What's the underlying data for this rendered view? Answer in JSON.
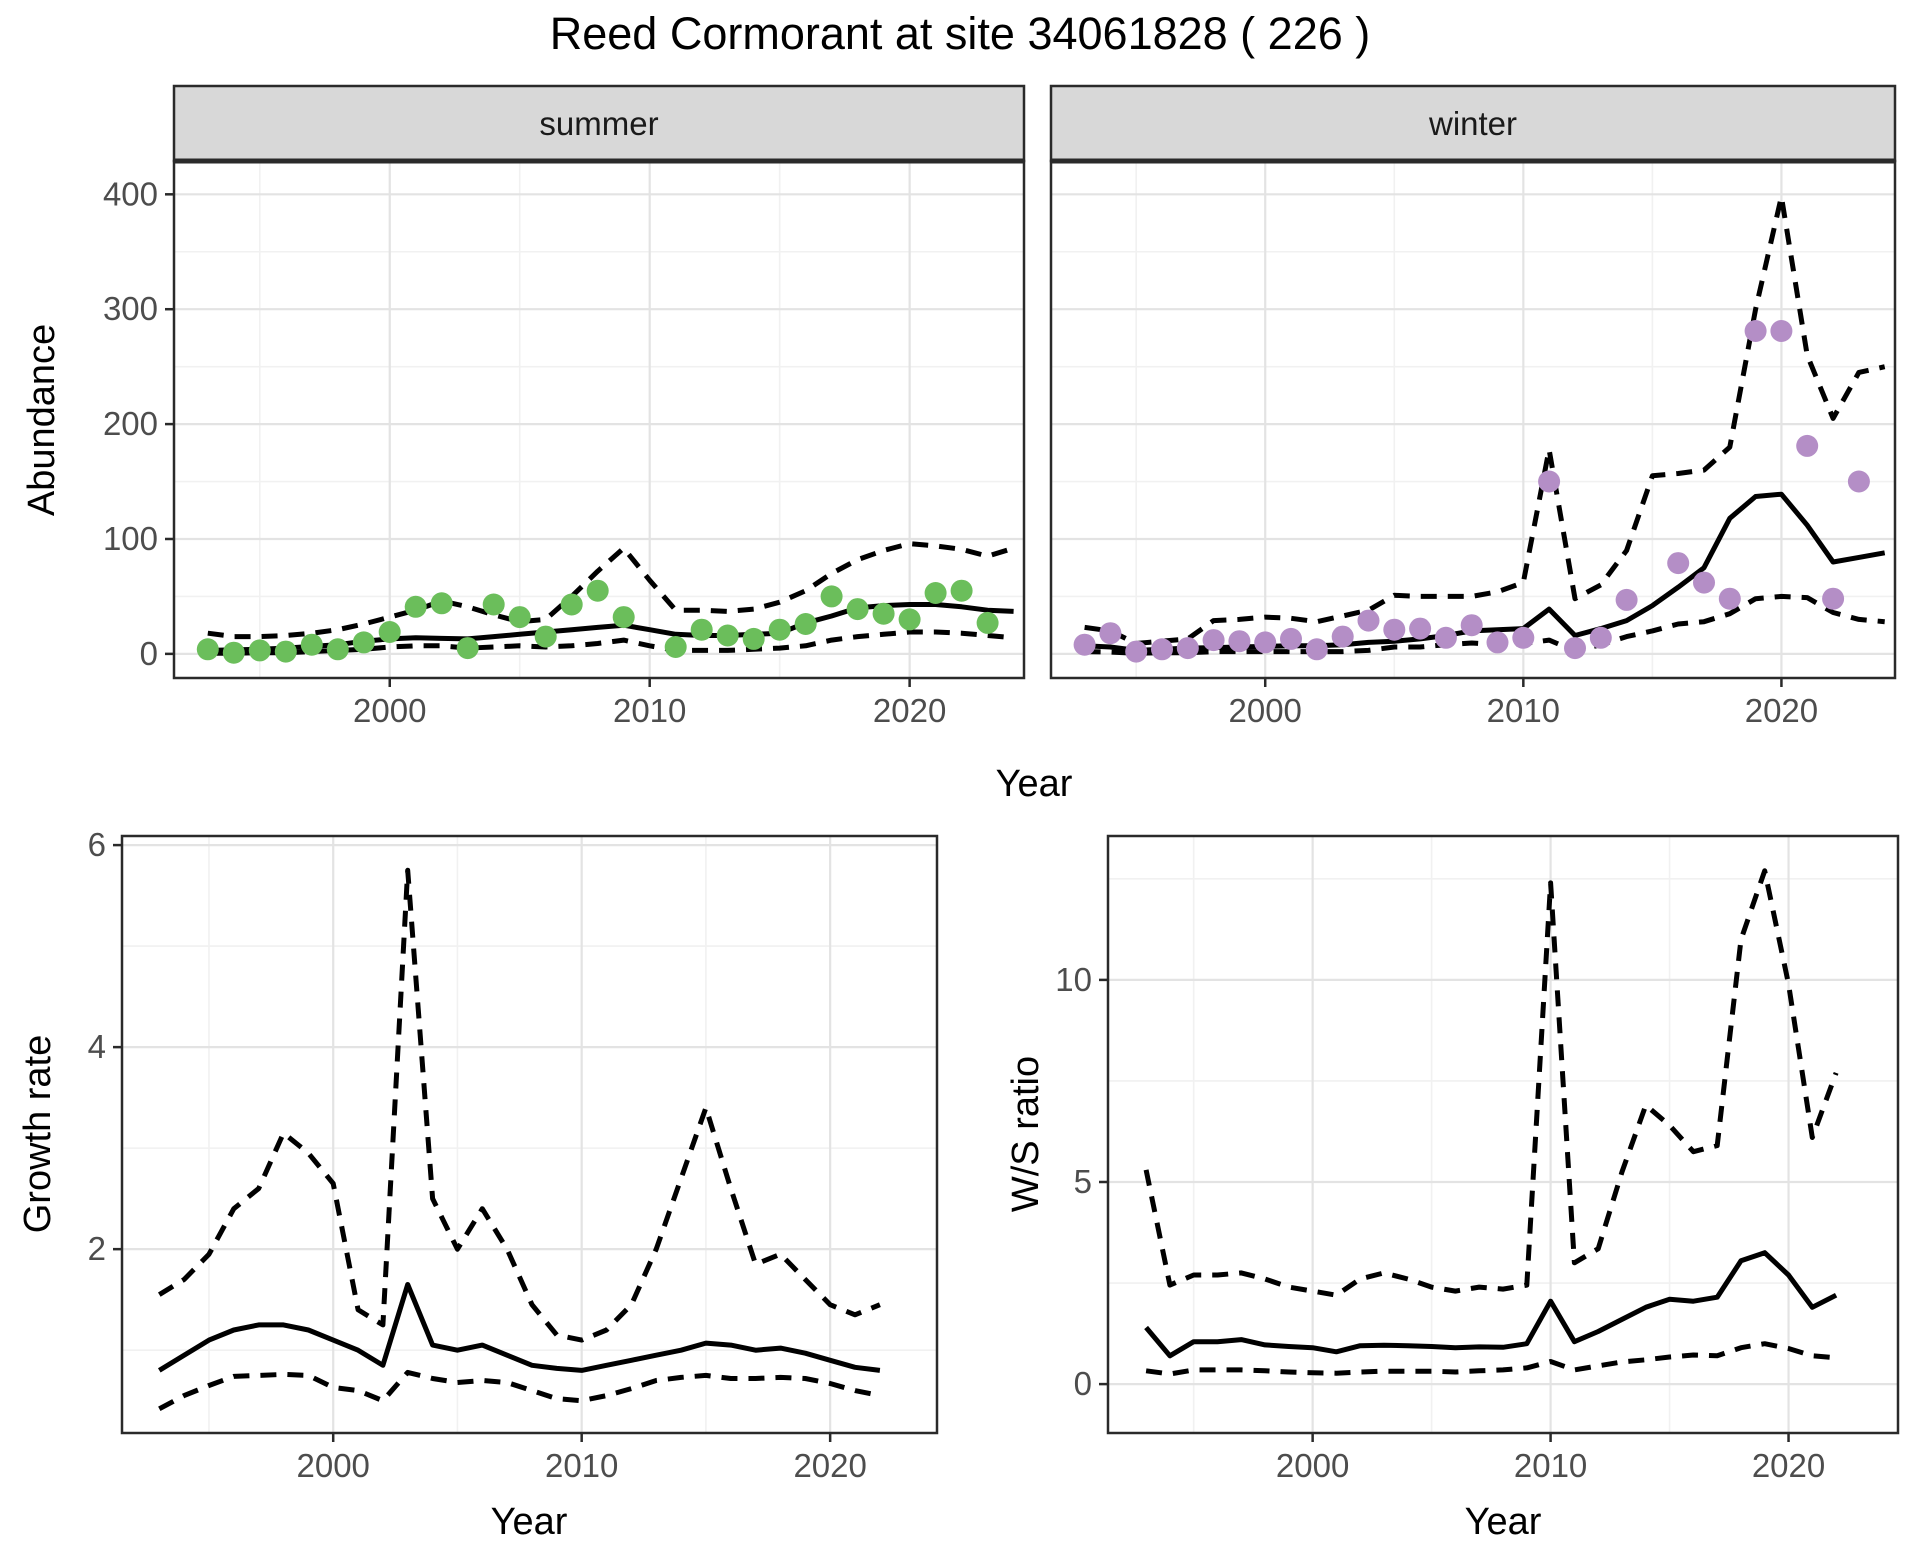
{
  "title": "Reed Cormorant at site 34061828 ( 226 )",
  "colors": {
    "summer_point": "#6BBE5B",
    "winter_point": "#B48EC6",
    "line": "#000000",
    "border": "#2A2A2A",
    "strip_bg": "#D8D8D8",
    "major_grid": "#E3E3E3",
    "minor_grid": "#F1F1F1",
    "tick_text": "#4D4D4D"
  },
  "chart_data": [
    {
      "id": "abundance-summer",
      "type": "line",
      "facet_label": "summer",
      "xlabel": "Year",
      "ylabel": "Abundance",
      "xlim": [
        1991.7,
        2024.4
      ],
      "ylim": [
        -21,
        429
      ],
      "xticks": [
        2000,
        2010,
        2020
      ],
      "xtick_minor": [
        1995,
        2005,
        2015
      ],
      "yticks": [
        0,
        100,
        200,
        300,
        400
      ],
      "ytick_minor": [
        50,
        150,
        250,
        350
      ],
      "ytick_labels": true,
      "point_color": "#6BBE5B",
      "points": {
        "x": [
          1993,
          1994,
          1995,
          1996,
          1997,
          1998,
          1999,
          2000,
          2001,
          2002,
          2003,
          2004,
          2005,
          2006,
          2007,
          2008,
          2009,
          2011,
          2012,
          2013,
          2014,
          2015,
          2016,
          2017,
          2018,
          2019,
          2020,
          2021,
          2022,
          2023
        ],
        "y": [
          4,
          1,
          3,
          2,
          8,
          4,
          10,
          19,
          41,
          44,
          5,
          43,
          32,
          15,
          43,
          55,
          32,
          6,
          21,
          16,
          13,
          21,
          26,
          50,
          39,
          35,
          30,
          53,
          55,
          27
        ]
      },
      "fit": {
        "x": [
          1993,
          1994,
          1995,
          1996,
          1997,
          1998,
          1999,
          2000,
          2001,
          2002,
          2003,
          2004,
          2005,
          2006,
          2007,
          2008,
          2009,
          2010,
          2011,
          2012,
          2013,
          2014,
          2015,
          2016,
          2017,
          2018,
          2019,
          2020,
          2021,
          2022,
          2023,
          2024
        ],
        "y": [
          3,
          3.5,
          4,
          5,
          6.5,
          8,
          11,
          13,
          14,
          13.5,
          13,
          15,
          17,
          19,
          21,
          23,
          25,
          21,
          17,
          16,
          16,
          17,
          18,
          27,
          33,
          40,
          42,
          43,
          43,
          41,
          38,
          37
        ]
      },
      "upper": {
        "x": [
          1993,
          1994,
          1995,
          1996,
          1997,
          1998,
          1999,
          2000,
          2001,
          2002,
          2003,
          2004,
          2005,
          2006,
          2007,
          2008,
          2009,
          2010,
          2011,
          2012,
          2013,
          2014,
          2015,
          2016,
          2017,
          2018,
          2019,
          2020,
          2021,
          2022,
          2023,
          2024
        ],
        "y": [
          18,
          15,
          15,
          16,
          18,
          21,
          26,
          32,
          38,
          46,
          41,
          34,
          28,
          30,
          50,
          72,
          92,
          64,
          38,
          38,
          37,
          39,
          45,
          55,
          70,
          82,
          90,
          96,
          94,
          91,
          85,
          92
        ]
      },
      "lower": {
        "x": [
          1993,
          1994,
          1995,
          1996,
          1997,
          1998,
          1999,
          2000,
          2001,
          2002,
          2003,
          2004,
          2005,
          2006,
          2007,
          2008,
          2009,
          2010,
          2011,
          2012,
          2013,
          2014,
          2015,
          2016,
          2017,
          2018,
          2019,
          2020,
          2021,
          2022,
          2023,
          2024
        ],
        "y": [
          0.5,
          0.5,
          1,
          1,
          2,
          3,
          4,
          6,
          7,
          7,
          5,
          6,
          7,
          6,
          7,
          9,
          12,
          7,
          3,
          3,
          3,
          4,
          5,
          7,
          12,
          15,
          17,
          19,
          19,
          18,
          16,
          14
        ]
      }
    },
    {
      "id": "abundance-winter",
      "type": "line",
      "facet_label": "winter",
      "xlabel": "Year",
      "ylabel": "Abundance",
      "xlim": [
        1991.7,
        2024.4
      ],
      "ylim": [
        -21,
        429
      ],
      "xticks": [
        2000,
        2010,
        2020
      ],
      "xtick_minor": [
        1995,
        2005,
        2015
      ],
      "yticks": [
        0,
        100,
        200,
        300,
        400
      ],
      "ytick_minor": [
        50,
        150,
        250,
        350
      ],
      "ytick_labels": false,
      "point_color": "#B48EC6",
      "points": {
        "x": [
          1993,
          1994,
          1995,
          1996,
          1997,
          1998,
          1999,
          2000,
          2001,
          2002,
          2003,
          2004,
          2005,
          2006,
          2007,
          2008,
          2009,
          2010,
          2011,
          2012,
          2013,
          2014,
          2016,
          2017,
          2018,
          2019,
          2020,
          2021,
          2022,
          2023
        ],
        "y": [
          8,
          18,
          2,
          4,
          5,
          12,
          11,
          10,
          13,
          4,
          15,
          29,
          21,
          22,
          14,
          25,
          10,
          14,
          150,
          5,
          14,
          47,
          79,
          62,
          48,
          281,
          281,
          181,
          48,
          150
        ]
      },
      "fit": {
        "x": [
          1993,
          1994,
          1995,
          1996,
          1997,
          1998,
          1999,
          2000,
          2001,
          2002,
          2003,
          2004,
          2005,
          2006,
          2007,
          2008,
          2009,
          2010,
          2011,
          2012,
          2013,
          2014,
          2015,
          2016,
          2017,
          2018,
          2019,
          2020,
          2021,
          2022,
          2023,
          2024
        ],
        "y": [
          7,
          6,
          3,
          4,
          5,
          5.5,
          6,
          6.5,
          7,
          7,
          8,
          10,
          11,
          13,
          16,
          20,
          21,
          22,
          39,
          16,
          22,
          29,
          42,
          58,
          75,
          118,
          137,
          139,
          112,
          80,
          84,
          88
        ]
      },
      "upper": {
        "x": [
          1993,
          1994,
          1995,
          1996,
          1997,
          1998,
          1999,
          2000,
          2001,
          2002,
          2003,
          2004,
          2005,
          2006,
          2007,
          2008,
          2009,
          2010,
          2011,
          2012,
          2013,
          2014,
          2015,
          2016,
          2017,
          2018,
          2019,
          2020,
          2021,
          2022,
          2023,
          2024
        ],
        "y": [
          23,
          20,
          9,
          11,
          13,
          29,
          30,
          32,
          31,
          28,
          33,
          38,
          51,
          50,
          50,
          50,
          54,
          62,
          178,
          48,
          60,
          90,
          155,
          157,
          160,
          180,
          300,
          398,
          260,
          205,
          245,
          250
        ]
      },
      "lower": {
        "x": [
          1993,
          1994,
          1995,
          1996,
          1997,
          1998,
          1999,
          2000,
          2001,
          2002,
          2003,
          2004,
          2005,
          2006,
          2007,
          2008,
          2009,
          2010,
          2011,
          2012,
          2013,
          2014,
          2015,
          2016,
          2017,
          2018,
          2019,
          2020,
          2021,
          2022,
          2023,
          2024
        ],
        "y": [
          2,
          1.5,
          0.5,
          1,
          1,
          2,
          2,
          2,
          2,
          2,
          2,
          3,
          6,
          6,
          8,
          9.5,
          8,
          9,
          12,
          2.5,
          8,
          15,
          20,
          26,
          28,
          35,
          48,
          50,
          49,
          36,
          30,
          28
        ]
      }
    },
    {
      "id": "growth-rate",
      "type": "line",
      "facet_label": "",
      "xlabel": "Year",
      "ylabel": "Growth rate",
      "xlim": [
        1991.5,
        2024.3
      ],
      "ylim": [
        0.18,
        6.09
      ],
      "xticks": [
        2000,
        2010,
        2020
      ],
      "xtick_minor": [
        1995,
        2005,
        2015
      ],
      "yticks": [
        2,
        4,
        6
      ],
      "ytick_minor": [
        1,
        3,
        5
      ],
      "ytick_labels": true,
      "point_color": null,
      "points": {
        "x": [],
        "y": []
      },
      "fit": {
        "x": [
          1993,
          1994,
          1995,
          1996,
          1997,
          1998,
          1999,
          2000,
          2001,
          2002,
          2003,
          2004,
          2005,
          2006,
          2007,
          2008,
          2009,
          2010,
          2011,
          2012,
          2013,
          2014,
          2015,
          2016,
          2017,
          2018,
          2019,
          2020,
          2021,
          2022
        ],
        "y": [
          0.8,
          0.95,
          1.1,
          1.2,
          1.25,
          1.25,
          1.2,
          1.1,
          1.0,
          0.85,
          1.65,
          1.05,
          1.0,
          1.05,
          0.95,
          0.85,
          0.82,
          0.8,
          0.85,
          0.9,
          0.95,
          1.0,
          1.07,
          1.05,
          1.0,
          1.02,
          0.97,
          0.9,
          0.83,
          0.8
        ]
      },
      "upper": {
        "x": [
          1993,
          1994,
          1995,
          1996,
          1997,
          1998,
          1999,
          2000,
          2001,
          2002,
          2003,
          2004,
          2005,
          2006,
          2007,
          2008,
          2009,
          2010,
          2011,
          2012,
          2013,
          2014,
          2015,
          2016,
          2017,
          2018,
          2019,
          2020,
          2021,
          2022
        ],
        "y": [
          1.55,
          1.7,
          1.95,
          2.4,
          2.6,
          3.15,
          2.95,
          2.65,
          1.4,
          1.25,
          5.75,
          2.5,
          2.0,
          2.4,
          2.0,
          1.45,
          1.15,
          1.1,
          1.2,
          1.45,
          2.0,
          2.7,
          3.4,
          2.6,
          1.85,
          1.95,
          1.7,
          1.45,
          1.35,
          1.45
        ]
      },
      "lower": {
        "x": [
          1993,
          1994,
          1995,
          1996,
          1997,
          1998,
          1999,
          2000,
          2001,
          2002,
          2003,
          2004,
          2005,
          2006,
          2007,
          2008,
          2009,
          2010,
          2011,
          2012,
          2013,
          2014,
          2015,
          2016,
          2017,
          2018,
          2019,
          2020,
          2021,
          2022
        ],
        "y": [
          0.42,
          0.55,
          0.65,
          0.74,
          0.75,
          0.76,
          0.75,
          0.63,
          0.6,
          0.5,
          0.78,
          0.72,
          0.68,
          0.7,
          0.68,
          0.6,
          0.52,
          0.5,
          0.55,
          0.62,
          0.7,
          0.73,
          0.75,
          0.72,
          0.72,
          0.73,
          0.72,
          0.67,
          0.6,
          0.55
        ]
      }
    },
    {
      "id": "ws-ratio",
      "type": "line",
      "facet_label": "",
      "xlabel": "Year",
      "ylabel": "W/S ratio",
      "xlim": [
        1991.4,
        2024.6
      ],
      "ylim": [
        -1.21,
        13.56
      ],
      "xticks": [
        2000,
        2010,
        2020
      ],
      "xtick_minor": [
        1995,
        2005,
        2015
      ],
      "yticks": [
        0,
        5,
        10
      ],
      "ytick_minor": [
        2.5,
        7.5,
        12.5
      ],
      "ytick_labels": true,
      "point_color": null,
      "points": {
        "x": [],
        "y": []
      },
      "fit": {
        "x": [
          1993,
          1994,
          1995,
          1996,
          1997,
          1998,
          1999,
          2000,
          2001,
          2002,
          2003,
          2004,
          2005,
          2006,
          2007,
          2008,
          2009,
          2010,
          2011,
          2012,
          2013,
          2014,
          2015,
          2016,
          2017,
          2018,
          2019,
          2020,
          2021,
          2022
        ],
        "y": [
          1.4,
          0.7,
          1.05,
          1.05,
          1.1,
          0.97,
          0.93,
          0.9,
          0.8,
          0.95,
          0.96,
          0.95,
          0.93,
          0.9,
          0.92,
          0.91,
          1.0,
          2.05,
          1.05,
          1.3,
          1.6,
          1.9,
          2.1,
          2.05,
          2.15,
          3.05,
          3.25,
          2.7,
          1.9,
          2.2
        ]
      },
      "upper": {
        "x": [
          1993,
          1994,
          1995,
          1996,
          1997,
          1998,
          1999,
          2000,
          2001,
          2002,
          2003,
          2004,
          2005,
          2006,
          2007,
          2008,
          2009,
          2010,
          2011,
          2012,
          2013,
          2014,
          2015,
          2016,
          2017,
          2018,
          2019,
          2020,
          2021,
          2022
        ],
        "y": [
          5.3,
          2.45,
          2.7,
          2.7,
          2.75,
          2.6,
          2.4,
          2.3,
          2.2,
          2.6,
          2.75,
          2.6,
          2.4,
          2.3,
          2.4,
          2.35,
          2.45,
          12.4,
          3.0,
          3.35,
          5.25,
          6.9,
          6.4,
          5.75,
          5.9,
          11.0,
          12.7,
          9.9,
          6.1,
          7.7
        ]
      },
      "lower": {
        "x": [
          1993,
          1994,
          1995,
          1996,
          1997,
          1998,
          1999,
          2000,
          2001,
          2002,
          2003,
          2004,
          2005,
          2006,
          2007,
          2008,
          2009,
          2010,
          2011,
          2012,
          2013,
          2014,
          2015,
          2016,
          2017,
          2018,
          2019,
          2020,
          2021,
          2022
        ],
        "y": [
          0.33,
          0.25,
          0.35,
          0.35,
          0.35,
          0.33,
          0.3,
          0.28,
          0.27,
          0.3,
          0.32,
          0.32,
          0.32,
          0.3,
          0.33,
          0.35,
          0.4,
          0.56,
          0.35,
          0.45,
          0.55,
          0.6,
          0.67,
          0.72,
          0.7,
          0.9,
          1.0,
          0.88,
          0.7,
          0.65
        ]
      }
    }
  ]
}
